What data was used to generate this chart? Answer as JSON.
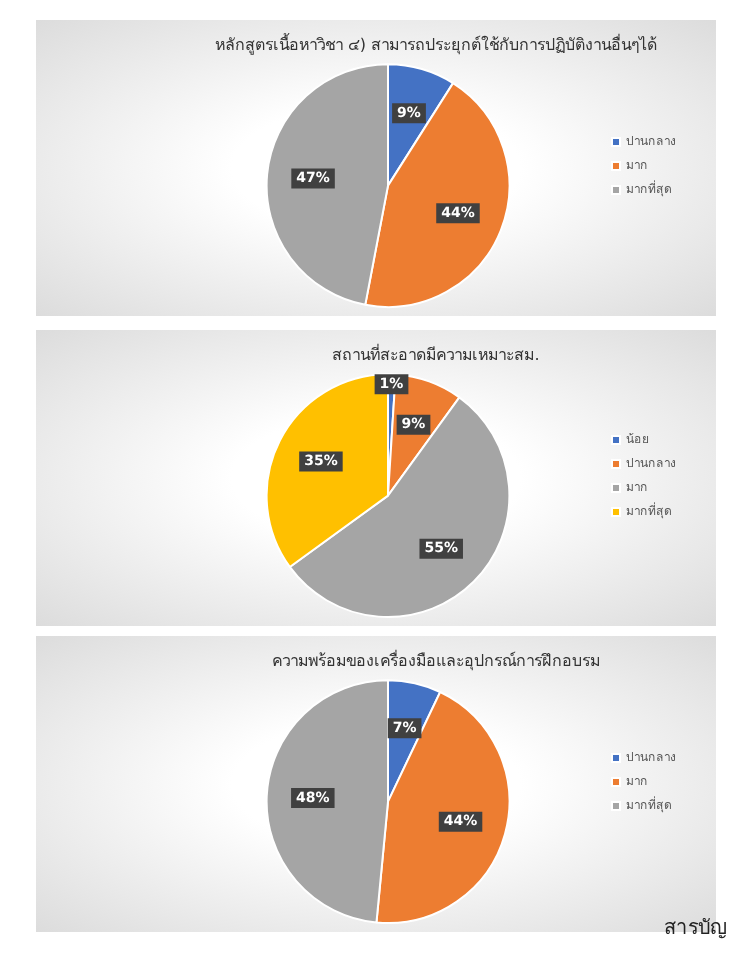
{
  "chart_data": [
    {
      "type": "pie",
      "title": "หลักสูตรเนื้อหาวิชา ๔) สามารถประยุกต์ใช้กับการปฏิบัติงานอื่นๆได้",
      "categories": [
        "ปานกลาง",
        "มาก",
        "มากที่สุด"
      ],
      "values": [
        9,
        44,
        47
      ],
      "value_labels": [
        "9%",
        "44%",
        "47%"
      ],
      "colors": [
        "#4472c4",
        "#ed7d31",
        "#a5a5a5"
      ],
      "legend": "right"
    },
    {
      "type": "pie",
      "title": "สถานที่สะอาดมีความเหมาะสม.",
      "categories": [
        "น้อย",
        "ปานกลาง",
        "มาก",
        "มากที่สุด"
      ],
      "values": [
        1,
        9,
        55,
        35
      ],
      "value_labels": [
        "1%",
        "9%",
        "55%",
        "35%"
      ],
      "colors": [
        "#4472c4",
        "#ed7d31",
        "#a5a5a5",
        "#ffc000"
      ],
      "legend": "right"
    },
    {
      "type": "pie",
      "title": "ความพร้อมของเครื่องมือและอุปกรณ์การฝึกอบรม",
      "categories": [
        "ปานกลาง",
        "มาก",
        "มากที่สุด"
      ],
      "values": [
        7,
        44,
        48
      ],
      "value_labels": [
        "7%",
        "44%",
        "48%"
      ],
      "colors": [
        "#4472c4",
        "#ed7d31",
        "#a5a5a5"
      ],
      "legend": "right",
      "annotations": [
        "สารบัญ"
      ]
    }
  ]
}
